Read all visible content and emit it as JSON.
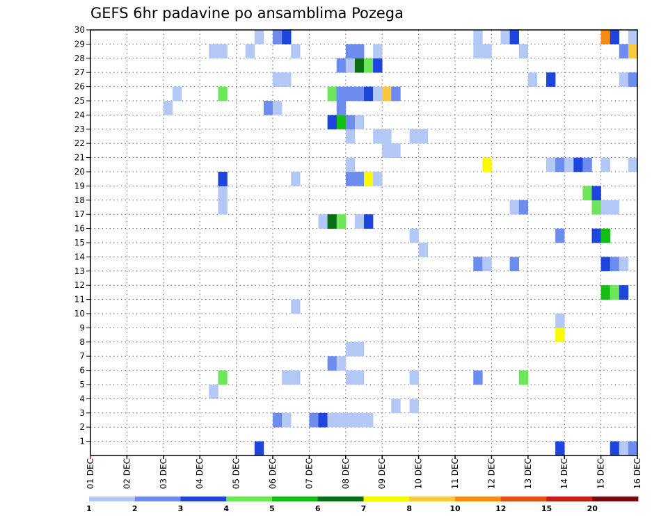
{
  "chart_data": {
    "type": "heatmap",
    "title": "GEFS 6hr padavine po ansamblima Pozega",
    "xlabel": "",
    "ylabel": "",
    "x_tick_labels": [
      "01 DEC",
      "02 DEC",
      "03 DEC",
      "04 DEC",
      "05 DEC",
      "06 DEC",
      "07 DEC",
      "08 DEC",
      "09 DEC",
      "10 DEC",
      "11 DEC",
      "12 DEC",
      "13 DEC",
      "14 DEC",
      "15 DEC",
      "16 DEC"
    ],
    "y_tick_labels": [
      "1",
      "2",
      "3",
      "4",
      "5",
      "6",
      "7",
      "8",
      "9",
      "10",
      "11",
      "12",
      "13",
      "14",
      "15",
      "16",
      "17",
      "18",
      "19",
      "20",
      "21",
      "22",
      "23",
      "24",
      "25",
      "26",
      "27",
      "28",
      "29",
      "30"
    ],
    "x_range_days": [
      1,
      16
    ],
    "y_range": [
      0,
      30
    ],
    "time_step_hours": 6,
    "grid": true,
    "colorbar": {
      "position": "bottom",
      "labels": [
        "1",
        "2",
        "3",
        "4",
        "5",
        "6",
        "7",
        "8",
        "10",
        "12",
        "15",
        "20"
      ],
      "colors": [
        "#b4c8f5",
        "#6c8cee",
        "#1e46dc",
        "#6ee65a",
        "#14be14",
        "#0a6e14",
        "#fafa00",
        "#fac83c",
        "#f58c14",
        "#e65014",
        "#c81e14",
        "#780a0a"
      ]
    },
    "cells_note": "each cell = [day_offset_from_01_DEC (fractional, 0.25 = 6h), member_row, color_index into colorbar.colors]",
    "cells": [
      [
        4.5,
        0,
        2
      ],
      [
        12.75,
        0,
        2
      ],
      [
        14.25,
        0,
        2
      ],
      [
        14.5,
        0,
        0
      ],
      [
        14.75,
        0,
        1
      ],
      [
        5.0,
        2,
        1
      ],
      [
        5.25,
        2,
        0
      ],
      [
        6.0,
        2,
        1
      ],
      [
        6.25,
        2,
        2
      ],
      [
        6.5,
        2,
        0
      ],
      [
        6.75,
        2,
        0
      ],
      [
        7.0,
        2,
        0
      ],
      [
        7.25,
        2,
        0
      ],
      [
        7.5,
        2,
        0
      ],
      [
        8.25,
        3,
        0
      ],
      [
        8.75,
        3,
        0
      ],
      [
        3.25,
        4,
        0
      ],
      [
        3.5,
        5,
        3
      ],
      [
        5.25,
        5,
        0
      ],
      [
        5.5,
        5,
        0
      ],
      [
        7.0,
        5,
        0
      ],
      [
        7.25,
        5,
        0
      ],
      [
        8.75,
        5,
        0
      ],
      [
        10.5,
        5,
        1
      ],
      [
        11.75,
        5,
        3
      ],
      [
        6.5,
        6,
        1
      ],
      [
        6.75,
        6,
        0
      ],
      [
        7.0,
        7,
        0
      ],
      [
        7.25,
        7,
        0
      ],
      [
        12.75,
        8,
        6
      ],
      [
        12.75,
        9,
        0
      ],
      [
        5.5,
        10,
        0
      ],
      [
        14.0,
        11,
        4
      ],
      [
        14.25,
        11,
        3
      ],
      [
        14.5,
        11,
        2
      ],
      [
        14.0,
        13,
        2
      ],
      [
        14.25,
        13,
        1
      ],
      [
        14.5,
        13,
        0
      ],
      [
        10.5,
        13,
        1
      ],
      [
        10.75,
        13,
        0
      ],
      [
        11.5,
        13,
        1
      ],
      [
        9.0,
        14,
        0
      ],
      [
        8.75,
        15,
        0
      ],
      [
        12.75,
        15,
        1
      ],
      [
        13.75,
        15,
        2
      ],
      [
        14.0,
        15,
        4
      ],
      [
        6.25,
        16,
        0
      ],
      [
        6.5,
        16,
        5
      ],
      [
        6.75,
        16,
        3
      ],
      [
        7.25,
        16,
        0
      ],
      [
        7.5,
        16,
        2
      ],
      [
        3.5,
        17,
        0
      ],
      [
        11.5,
        17,
        0
      ],
      [
        11.75,
        17,
        1
      ],
      [
        13.75,
        17,
        3
      ],
      [
        14.0,
        17,
        0
      ],
      [
        14.25,
        17,
        0
      ],
      [
        3.5,
        18,
        0
      ],
      [
        13.5,
        18,
        3
      ],
      [
        13.75,
        18,
        2
      ],
      [
        3.5,
        19,
        2
      ],
      [
        5.5,
        19,
        0
      ],
      [
        7.0,
        19,
        1
      ],
      [
        7.25,
        19,
        1
      ],
      [
        7.5,
        19,
        6
      ],
      [
        7.75,
        19,
        0
      ],
      [
        7.0,
        20,
        0
      ],
      [
        10.75,
        20,
        6
      ],
      [
        12.5,
        20,
        0
      ],
      [
        12.75,
        20,
        1
      ],
      [
        13.0,
        20,
        0
      ],
      [
        13.25,
        20,
        2
      ],
      [
        13.5,
        20,
        1
      ],
      [
        14.0,
        20,
        0
      ],
      [
        14.75,
        20,
        0
      ],
      [
        8.0,
        21,
        0
      ],
      [
        8.25,
        21,
        0
      ],
      [
        7.0,
        22,
        0
      ],
      [
        7.75,
        22,
        0
      ],
      [
        8.0,
        22,
        0
      ],
      [
        8.75,
        22,
        0
      ],
      [
        9.0,
        22,
        0
      ],
      [
        6.5,
        23,
        2
      ],
      [
        6.75,
        23,
        4
      ],
      [
        7.0,
        23,
        1
      ],
      [
        7.25,
        23,
        0
      ],
      [
        2.0,
        24,
        0
      ],
      [
        4.75,
        24,
        1
      ],
      [
        5.0,
        24,
        0
      ],
      [
        6.75,
        24,
        1
      ],
      [
        2.25,
        25,
        0
      ],
      [
        3.5,
        25,
        3
      ],
      [
        6.5,
        25,
        3
      ],
      [
        6.75,
        25,
        1
      ],
      [
        7.0,
        25,
        1
      ],
      [
        7.25,
        25,
        1
      ],
      [
        7.5,
        25,
        2
      ],
      [
        7.75,
        25,
        0
      ],
      [
        8.0,
        25,
        7
      ],
      [
        8.25,
        25,
        1
      ],
      [
        5.0,
        26,
        0
      ],
      [
        5.25,
        26,
        0
      ],
      [
        12.0,
        26,
        0
      ],
      [
        12.5,
        26,
        2
      ],
      [
        14.5,
        26,
        0
      ],
      [
        14.75,
        26,
        1
      ],
      [
        6.75,
        27,
        1
      ],
      [
        7.0,
        27,
        0
      ],
      [
        7.25,
        27,
        5
      ],
      [
        7.5,
        27,
        3
      ],
      [
        7.75,
        27,
        2
      ],
      [
        3.25,
        28,
        0
      ],
      [
        3.5,
        28,
        0
      ],
      [
        4.25,
        28,
        0
      ],
      [
        5.5,
        28,
        0
      ],
      [
        7.0,
        28,
        1
      ],
      [
        7.25,
        28,
        1
      ],
      [
        7.75,
        28,
        0
      ],
      [
        10.5,
        28,
        0
      ],
      [
        10.75,
        28,
        0
      ],
      [
        11.75,
        28,
        0
      ],
      [
        14.5,
        28,
        1
      ],
      [
        14.75,
        28,
        7
      ],
      [
        4.5,
        29,
        0
      ],
      [
        5.0,
        29,
        1
      ],
      [
        5.25,
        29,
        2
      ],
      [
        10.5,
        29,
        0
      ],
      [
        11.25,
        29,
        0
      ],
      [
        11.5,
        29,
        2
      ],
      [
        14.0,
        29,
        8
      ],
      [
        14.25,
        29,
        2
      ],
      [
        14.75,
        29,
        0
      ]
    ]
  }
}
